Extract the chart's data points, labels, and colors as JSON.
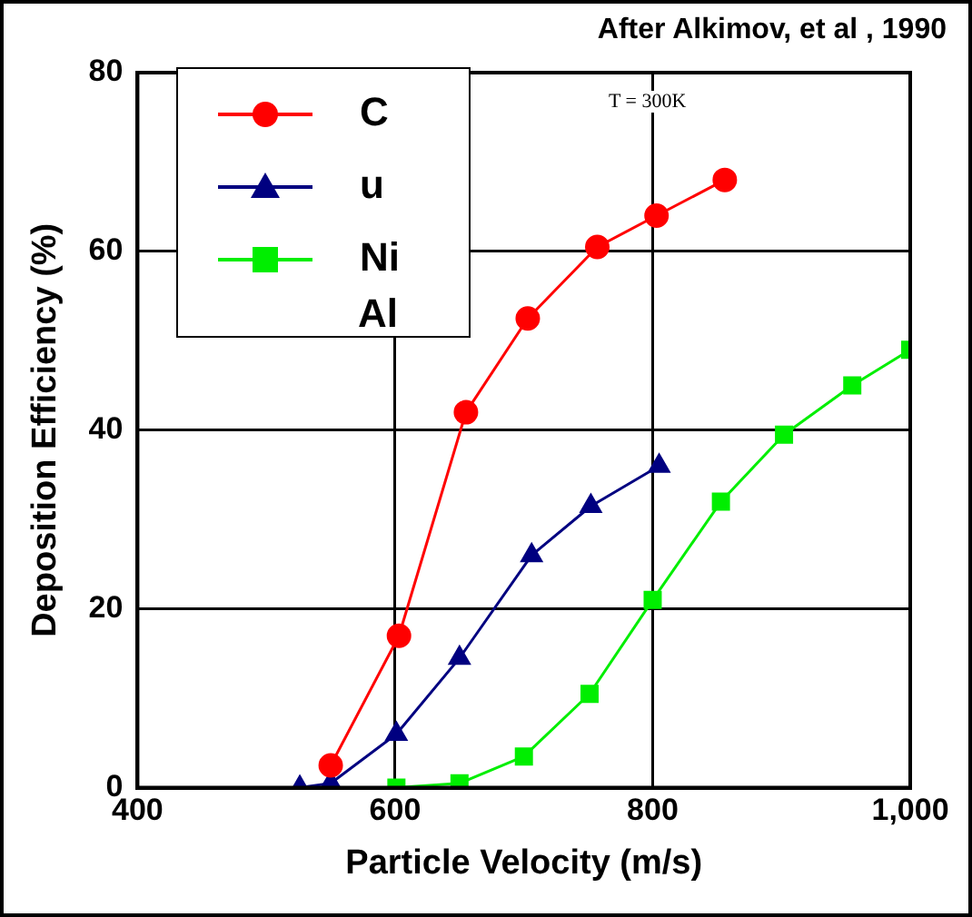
{
  "chart_data": {
    "type": "line",
    "xlabel": "Particle Velocity (m/s)",
    "ylabel": "Deposition Efficiency (%)",
    "annotations": [
      "After Alkimov, et al , 1990",
      "T = 300K",
      "Al"
    ],
    "xlim": [
      400,
      1000
    ],
    "xticks": [
      400,
      600,
      800,
      {
        "value": 1000,
        "label": "1,000"
      }
    ],
    "ylim": [
      0,
      80
    ],
    "yticks": [
      0,
      20,
      40,
      60,
      80
    ],
    "grid": true,
    "legend": "top left",
    "line_style": "solid",
    "series": [
      {
        "name": "C",
        "color": "#ff0000",
        "marker": "circle",
        "x": [
          550,
          603,
          655,
          703,
          757,
          803,
          856
        ],
        "values": [
          2.5,
          17,
          42,
          52.5,
          60.5,
          64,
          68
        ]
      },
      {
        "name": "u",
        "color": "#000080",
        "marker": "triangle",
        "x": [
          526,
          550,
          601,
          650,
          706,
          752,
          805
        ],
        "values": [
          0,
          0.5,
          6,
          14.5,
          26,
          31.5,
          36
        ]
      },
      {
        "name": "Ni",
        "color": "#00ee00",
        "marker": "square",
        "x": [
          601,
          650,
          700,
          751,
          800,
          853,
          902,
          955,
          1000
        ],
        "values": [
          0,
          0.5,
          3.5,
          10.5,
          21,
          32,
          39.5,
          45,
          49
        ]
      }
    ]
  }
}
